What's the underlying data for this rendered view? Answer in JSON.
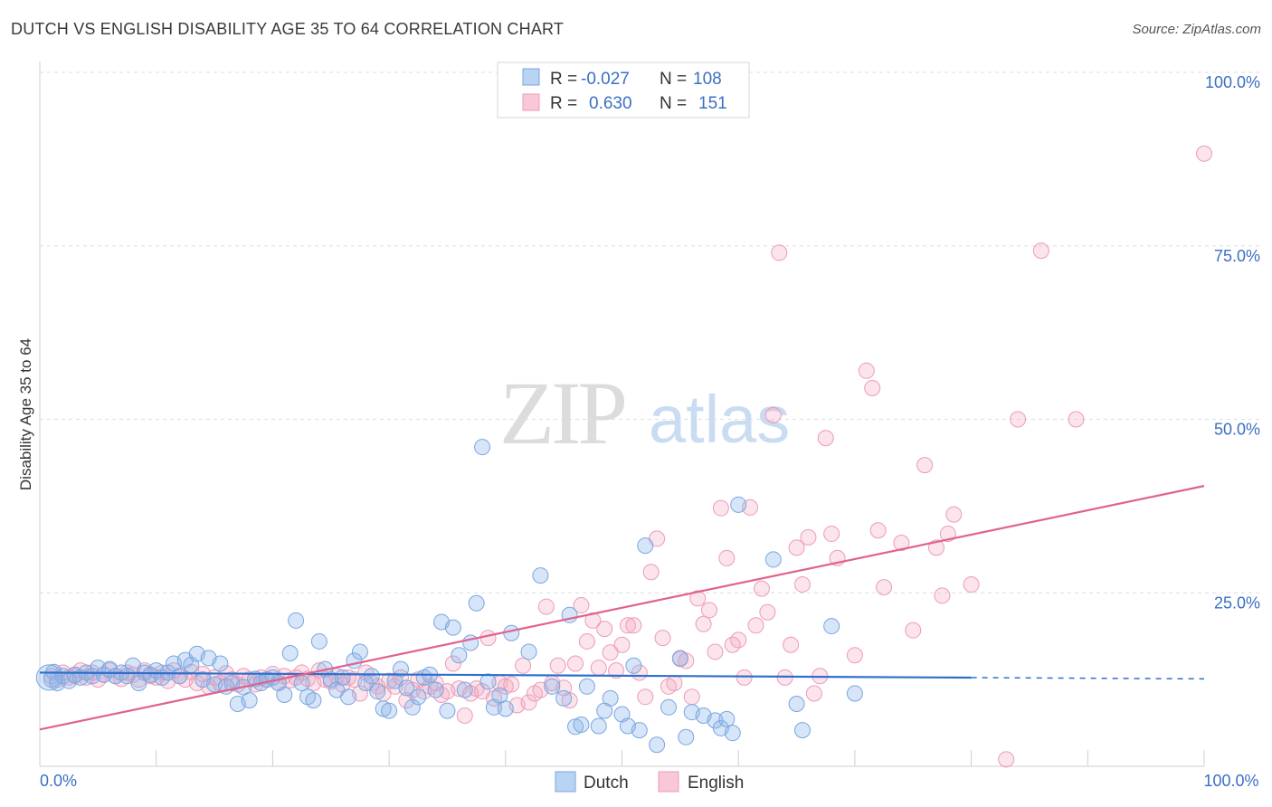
{
  "header": {
    "title": "DUTCH VS ENGLISH DISABILITY AGE 35 TO 64 CORRELATION CHART",
    "source": "Source: ZipAtlas.com"
  },
  "watermark": {
    "zip": "ZIP",
    "atlas": "atlas"
  },
  "stats": {
    "dutch": {
      "r_label": "R =",
      "r": "-0.027",
      "n_label": "N =",
      "n": "108"
    },
    "english": {
      "r_label": "R =",
      "r": "0.630",
      "n_label": "N =",
      "n": "151"
    }
  },
  "chart_data": {
    "type": "scatter",
    "title": "DUTCH VS ENGLISH DISABILITY AGE 35 TO 64 CORRELATION CHART",
    "xlabel": "",
    "ylabel": "Disability Age 35 to 64",
    "xlim": [
      0,
      100
    ],
    "ylim": [
      0,
      100
    ],
    "x_tick_labels": [
      {
        "value": 0,
        "label": "0.0%"
      },
      {
        "value": 100,
        "label": "100.0%"
      }
    ],
    "y_tick_labels": [
      {
        "value": 25,
        "label": "25.0%"
      },
      {
        "value": 50,
        "label": "50.0%"
      },
      {
        "value": 75,
        "label": "75.0%"
      },
      {
        "value": 100,
        "label": "100.0%"
      }
    ],
    "grid": true,
    "legend": [
      "Dutch",
      "English"
    ],
    "colors": {
      "dutch": "#8ab4ea",
      "english": "#f3a6be",
      "dutch_line": "#2f6fcb",
      "english_line": "#e0628f",
      "tick": "#3b6fc4"
    },
    "series": [
      {
        "name": "Dutch",
        "trend": {
          "x0": 0,
          "y0": 13.5,
          "x1": 100,
          "y1": 12.6,
          "solid_until": 80
        },
        "points": [
          [
            1,
            12.5
          ],
          [
            1.2,
            13.6
          ],
          [
            1.5,
            12.0
          ],
          [
            2,
            13.0
          ],
          [
            2.5,
            12.3
          ],
          [
            3,
            13.2
          ],
          [
            3.5,
            12.8
          ],
          [
            4,
            13.5
          ],
          [
            4.5,
            13.0
          ],
          [
            5,
            14.2
          ],
          [
            5.5,
            13.2
          ],
          [
            6,
            14.0
          ],
          [
            6.5,
            13.0
          ],
          [
            7,
            13.5
          ],
          [
            7.5,
            13.0
          ],
          [
            8,
            14.5
          ],
          [
            8.5,
            12.0
          ],
          [
            9,
            13.5
          ],
          [
            9.5,
            13.2
          ],
          [
            10,
            13.8
          ],
          [
            10.5,
            12.8
          ],
          [
            11,
            13.5
          ],
          [
            11.5,
            14.8
          ],
          [
            12,
            13.0
          ],
          [
            12.5,
            15.3
          ],
          [
            13,
            14.6
          ],
          [
            13.5,
            16.2
          ],
          [
            14,
            12.5
          ],
          [
            14.5,
            15.6
          ],
          [
            15,
            11.8
          ],
          [
            15.5,
            14.8
          ],
          [
            16,
            11.5
          ],
          [
            16.5,
            12.0
          ],
          [
            17,
            9.0
          ],
          [
            17.5,
            11.4
          ],
          [
            18,
            9.5
          ],
          [
            18.5,
            12.6
          ],
          [
            19,
            12.0
          ],
          [
            19.5,
            12.5
          ],
          [
            20,
            12.8
          ],
          [
            20.5,
            12.0
          ],
          [
            21,
            10.3
          ],
          [
            21.5,
            16.3
          ],
          [
            22,
            21.0
          ],
          [
            22.5,
            12.0
          ],
          [
            23,
            10.0
          ],
          [
            23.5,
            9.5
          ],
          [
            24,
            18.0
          ],
          [
            24.5,
            14.0
          ],
          [
            25,
            12.5
          ],
          [
            25.5,
            11.0
          ],
          [
            26,
            12.8
          ],
          [
            26.5,
            10.0
          ],
          [
            27,
            15.2
          ],
          [
            27.5,
            16.5
          ],
          [
            28,
            12.0
          ],
          [
            28.5,
            13.0
          ],
          [
            29,
            10.8
          ],
          [
            29.5,
            8.3
          ],
          [
            30,
            8.0
          ],
          [
            30.5,
            12.3
          ],
          [
            31,
            14.0
          ],
          [
            31.5,
            11.3
          ],
          [
            32,
            8.5
          ],
          [
            32.5,
            10.0
          ],
          [
            33,
            12.8
          ],
          [
            33.5,
            13.2
          ],
          [
            34,
            11.0
          ],
          [
            34.5,
            20.8
          ],
          [
            35,
            8.0
          ],
          [
            35.5,
            20.0
          ],
          [
            36,
            16.0
          ],
          [
            36.5,
            11.0
          ],
          [
            37,
            17.8
          ],
          [
            37.5,
            23.5
          ],
          [
            38,
            46.0
          ],
          [
            38.5,
            12.2
          ],
          [
            39,
            8.5
          ],
          [
            39.5,
            10.2
          ],
          [
            40,
            8.3
          ],
          [
            40.5,
            19.2
          ],
          [
            42,
            16.5
          ],
          [
            43,
            27.5
          ],
          [
            44,
            11.5
          ],
          [
            45,
            9.8
          ],
          [
            45.5,
            21.8
          ],
          [
            46,
            5.7
          ],
          [
            46.5,
            6.0
          ],
          [
            47,
            11.5
          ],
          [
            48,
            5.8
          ],
          [
            48.5,
            8.0
          ],
          [
            49,
            9.8
          ],
          [
            50,
            7.5
          ],
          [
            50.5,
            5.8
          ],
          [
            51,
            14.5
          ],
          [
            51.5,
            5.2
          ],
          [
            52,
            31.8
          ],
          [
            53,
            3.1
          ],
          [
            54,
            8.5
          ],
          [
            55,
            15.5
          ],
          [
            55.5,
            4.2
          ],
          [
            56,
            7.8
          ],
          [
            57,
            7.3
          ],
          [
            58,
            6.6
          ],
          [
            58.5,
            5.5
          ],
          [
            59,
            6.8
          ],
          [
            59.5,
            4.8
          ],
          [
            60,
            37.7
          ],
          [
            63,
            29.8
          ],
          [
            65,
            9.0
          ],
          [
            65.5,
            5.2
          ],
          [
            68,
            20.2
          ],
          [
            70,
            10.5
          ]
        ]
      },
      {
        "name": "English",
        "trend": {
          "x0": 0,
          "y0": 5.3,
          "x1": 100,
          "y1": 40.4
        },
        "points": [
          [
            1,
            13.0
          ],
          [
            1.5,
            12.5
          ],
          [
            2,
            13.5
          ],
          [
            2.5,
            12.8
          ],
          [
            3,
            13.0
          ],
          [
            3.5,
            13.8
          ],
          [
            4,
            12.8
          ],
          [
            4.5,
            13.5
          ],
          [
            5,
            12.5
          ],
          [
            5.5,
            13.2
          ],
          [
            6,
            13.8
          ],
          [
            6.5,
            13.0
          ],
          [
            7,
            12.6
          ],
          [
            7.5,
            13.5
          ],
          [
            8,
            13.2
          ],
          [
            8.5,
            12.5
          ],
          [
            9,
            13.8
          ],
          [
            9.5,
            13.0
          ],
          [
            10,
            12.8
          ],
          [
            10.5,
            13.5
          ],
          [
            11,
            12.3
          ],
          [
            11.5,
            13.8
          ],
          [
            12,
            13.0
          ],
          [
            12.5,
            12.5
          ],
          [
            13,
            13.6
          ],
          [
            13.5,
            12.0
          ],
          [
            14,
            13.3
          ],
          [
            14.5,
            11.5
          ],
          [
            15,
            12.8
          ],
          [
            15.5,
            12.0
          ],
          [
            16,
            13.4
          ],
          [
            16.5,
            12.5
          ],
          [
            17,
            11.8
          ],
          [
            17.5,
            13.0
          ],
          [
            18,
            12.5
          ],
          [
            18.5,
            11.8
          ],
          [
            19,
            12.8
          ],
          [
            19.5,
            12.5
          ],
          [
            20,
            13.3
          ],
          [
            20.5,
            12.0
          ],
          [
            21,
            13.0
          ],
          [
            21.5,
            12.4
          ],
          [
            22,
            12.8
          ],
          [
            22.5,
            13.5
          ],
          [
            23,
            12.6
          ],
          [
            23.5,
            12.0
          ],
          [
            24,
            13.8
          ],
          [
            24.5,
            12.5
          ],
          [
            25,
            12.2
          ],
          [
            25.5,
            13.0
          ],
          [
            26,
            11.8
          ],
          [
            26.5,
            12.8
          ],
          [
            27,
            12.5
          ],
          [
            27.5,
            10.5
          ],
          [
            28,
            13.5
          ],
          [
            28.5,
            12.0
          ],
          [
            29,
            11.5
          ],
          [
            29.5,
            10.5
          ],
          [
            30,
            12.3
          ],
          [
            30.5,
            11.5
          ],
          [
            31,
            12.8
          ],
          [
            31.5,
            9.5
          ],
          [
            32,
            11.0
          ],
          [
            32.5,
            12.5
          ],
          [
            33,
            10.8
          ],
          [
            33.5,
            11.5
          ],
          [
            34,
            12.0
          ],
          [
            34.5,
            10.3
          ],
          [
            35,
            10.8
          ],
          [
            35.5,
            14.8
          ],
          [
            36,
            11.2
          ],
          [
            36.5,
            7.3
          ],
          [
            37,
            10.5
          ],
          [
            37.5,
            11.2
          ],
          [
            38,
            10.8
          ],
          [
            38.5,
            18.5
          ],
          [
            39,
            9.8
          ],
          [
            39.5,
            12.0
          ],
          [
            40,
            11.5
          ],
          [
            40.5,
            11.8
          ],
          [
            41,
            8.8
          ],
          [
            41.5,
            14.5
          ],
          [
            42,
            9.2
          ],
          [
            42.5,
            10.5
          ],
          [
            43,
            11.0
          ],
          [
            43.5,
            23.0
          ],
          [
            44,
            12.0
          ],
          [
            44.5,
            14.5
          ],
          [
            45,
            11.3
          ],
          [
            45.5,
            9.5
          ],
          [
            46,
            14.8
          ],
          [
            46.5,
            23.2
          ],
          [
            47,
            18.0
          ],
          [
            47.5,
            21.0
          ],
          [
            48,
            14.2
          ],
          [
            48.5,
            19.8
          ],
          [
            49,
            16.4
          ],
          [
            49.5,
            13.8
          ],
          [
            50,
            17.5
          ],
          [
            50.5,
            20.3
          ],
          [
            51,
            20.3
          ],
          [
            51.5,
            13.5
          ],
          [
            52,
            10.0
          ],
          [
            52.5,
            28.0
          ],
          [
            53,
            32.8
          ],
          [
            53.5,
            18.5
          ],
          [
            54,
            11.5
          ],
          [
            54.5,
            12.0
          ],
          [
            55,
            15.6
          ],
          [
            55.5,
            15.2
          ],
          [
            56,
            10.0
          ],
          [
            56.5,
            24.2
          ],
          [
            57,
            20.5
          ],
          [
            57.5,
            22.5
          ],
          [
            58,
            16.5
          ],
          [
            58.5,
            37.2
          ],
          [
            59,
            30.0
          ],
          [
            59.5,
            17.5
          ],
          [
            60,
            18.2
          ],
          [
            60.5,
            12.8
          ],
          [
            61,
            37.3
          ],
          [
            61.5,
            20.3
          ],
          [
            62,
            25.6
          ],
          [
            62.5,
            22.2
          ],
          [
            63,
            50.6
          ],
          [
            63.5,
            74.0
          ],
          [
            64,
            12.8
          ],
          [
            64.5,
            17.5
          ],
          [
            65,
            31.5
          ],
          [
            65.5,
            26.2
          ],
          [
            66,
            33.0
          ],
          [
            66.5,
            10.5
          ],
          [
            67,
            13.0
          ],
          [
            67.5,
            47.3
          ],
          [
            68,
            33.5
          ],
          [
            68.5,
            30.0
          ],
          [
            70,
            16.0
          ],
          [
            71,
            57.0
          ],
          [
            71.5,
            54.5
          ],
          [
            72,
            34.0
          ],
          [
            72.5,
            25.8
          ],
          [
            74,
            32.2
          ],
          [
            75,
            19.6
          ],
          [
            76,
            43.4
          ],
          [
            77,
            31.5
          ],
          [
            77.5,
            24.6
          ],
          [
            78,
            33.5
          ],
          [
            78.5,
            36.3
          ],
          [
            80,
            26.2
          ],
          [
            83,
            1.0
          ],
          [
            84,
            50.0
          ],
          [
            86,
            74.3
          ],
          [
            89,
            50.0
          ],
          [
            100,
            88.3
          ]
        ]
      }
    ]
  },
  "legend": {
    "dutch": "Dutch",
    "english": "English"
  }
}
